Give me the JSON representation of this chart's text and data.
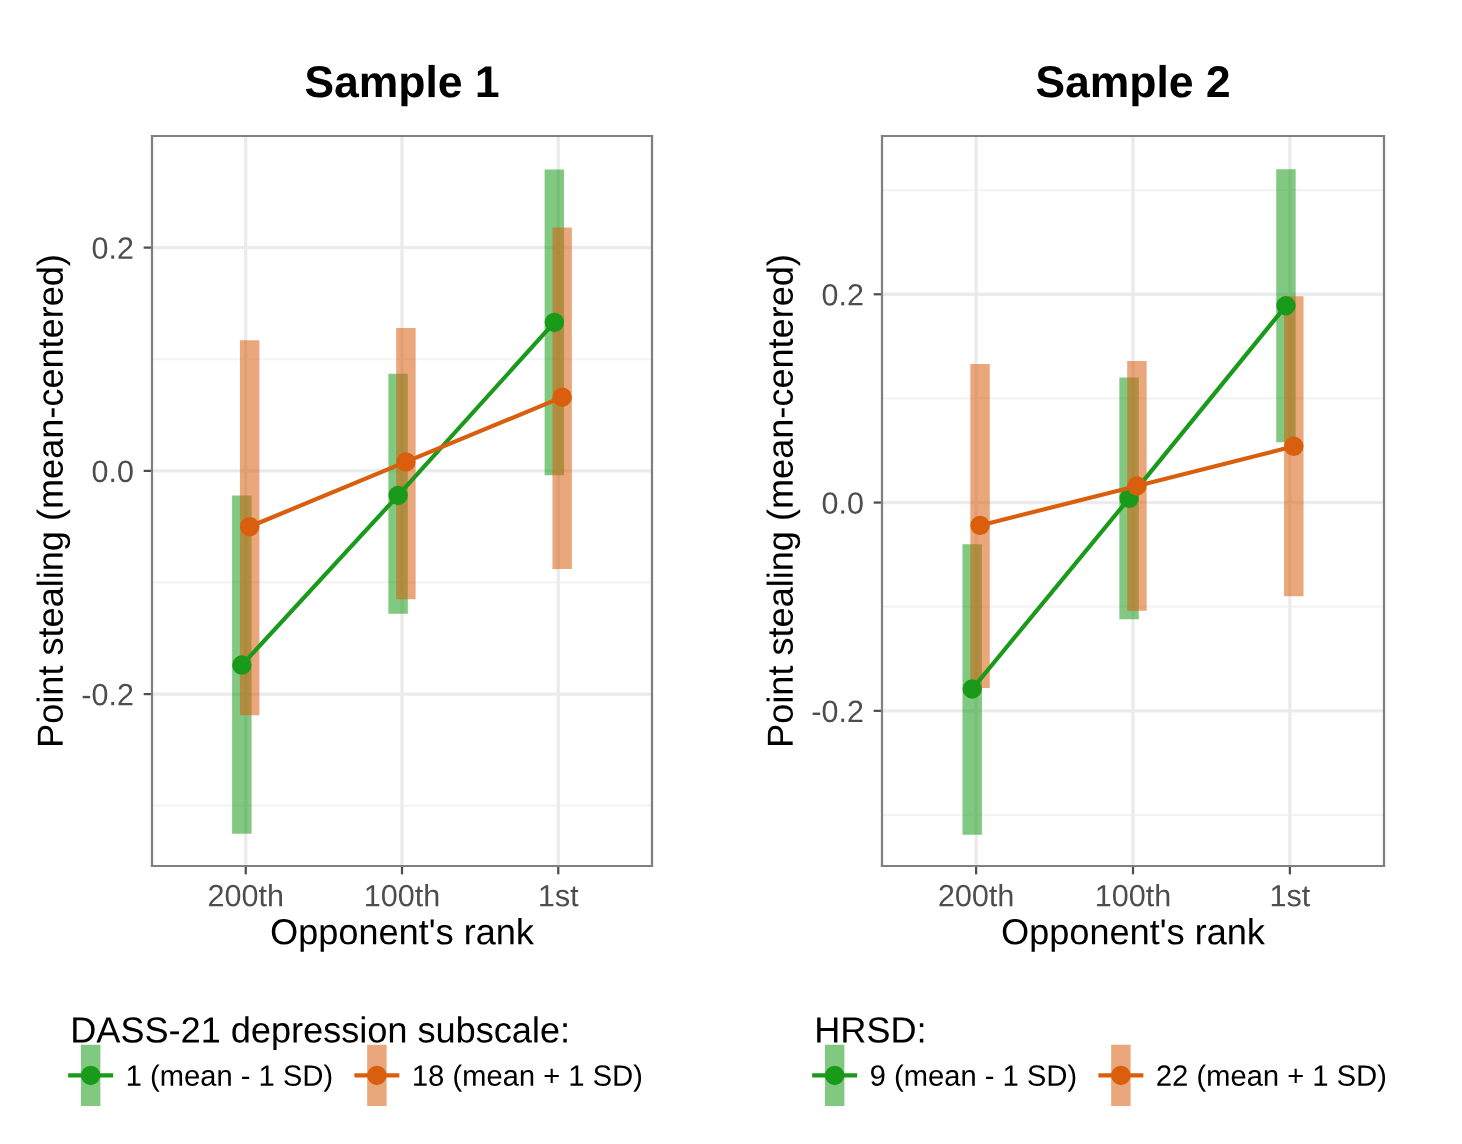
{
  "chart_data": [
    {
      "type": "line",
      "title": "Sample 1",
      "xlabel": "Opponent's rank",
      "ylabel": "Point stealing (mean-centered)",
      "categories": [
        "200th",
        "100th",
        "1st"
      ],
      "ylim": [
        -0.354,
        0.3
      ],
      "yticks": [
        {
          "value": -0.2,
          "label": "-0.2"
        },
        {
          "value": 0.0,
          "label": "0.0"
        },
        {
          "value": 0.2,
          "label": "0.2"
        }
      ],
      "grid": true,
      "marker": "circle",
      "line_style": "solid",
      "legend": "bottom",
      "legend_title": "DASS-21 depression subscale:",
      "series": [
        {
          "name": "1 (mean - 1 SD)",
          "color": "#1a9a1a",
          "values": [
            -0.174,
            -0.022,
            0.133
          ],
          "errors": [
            [
              -0.325,
              -0.022
            ],
            [
              -0.128,
              0.087
            ],
            [
              -0.004,
              0.27
            ]
          ]
        },
        {
          "name": "18 (mean + 1 SD)",
          "color": "#d95f0e",
          "values": [
            -0.05,
            0.008,
            0.066
          ],
          "errors": [
            [
              -0.219,
              0.117
            ],
            [
              -0.115,
              0.128
            ],
            [
              -0.088,
              0.218
            ]
          ]
        }
      ]
    },
    {
      "type": "line",
      "title": "Sample 2",
      "xlabel": "Opponent's rank",
      "ylabel": "Point stealing (mean-centered)",
      "categories": [
        "200th",
        "100th",
        "1st"
      ],
      "ylim": [
        -0.349,
        0.352
      ],
      "yticks": [
        {
          "value": -0.2,
          "label": "-0.2"
        },
        {
          "value": 0.0,
          "label": "0.0"
        },
        {
          "value": 0.2,
          "label": "0.2"
        }
      ],
      "grid": true,
      "marker": "circle",
      "line_style": "solid",
      "legend": "bottom",
      "legend_title": "HRSD:",
      "series": [
        {
          "name": "9 (mean - 1 SD)",
          "color": "#1a9a1a",
          "values": [
            -0.179,
            0.004,
            0.189
          ],
          "errors": [
            [
              -0.319,
              -0.04
            ],
            [
              -0.112,
              0.12
            ],
            [
              0.058,
              0.32
            ]
          ]
        },
        {
          "name": "22 (mean + 1 SD)",
          "color": "#d95f0e",
          "values": [
            -0.022,
            0.016,
            0.054
          ],
          "errors": [
            [
              -0.178,
              0.133
            ],
            [
              -0.104,
              0.136
            ],
            [
              -0.09,
              0.198
            ]
          ]
        }
      ]
    }
  ]
}
